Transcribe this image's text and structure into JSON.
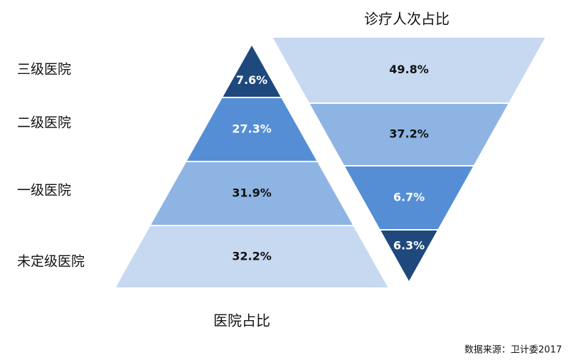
{
  "chart_data": {
    "type": "pyramid",
    "categories": [
      "三级医院",
      "二级医院",
      "一级医院",
      "未定级医院"
    ],
    "series": [
      {
        "name": "医院占比",
        "values": [
          7.6,
          27.3,
          31.9,
          32.2
        ],
        "value_labels": [
          "7.6%",
          "27.3%",
          "31.9%",
          "32.2%"
        ],
        "colors": [
          "#1f497d",
          "#558ed5",
          "#8eb4e3",
          "#c6d9f1"
        ],
        "orientation": "up"
      },
      {
        "name": "诊疗人次占比",
        "values": [
          49.8,
          37.2,
          6.7,
          6.3
        ],
        "value_labels": [
          "49.8%",
          "37.2%",
          "6.7%",
          "6.3%"
        ],
        "colors": [
          "#c6d9f1",
          "#8eb4e3",
          "#558ed5",
          "#1f497d"
        ],
        "orientation": "down"
      }
    ],
    "source": "数据来源：卫计委2017"
  }
}
